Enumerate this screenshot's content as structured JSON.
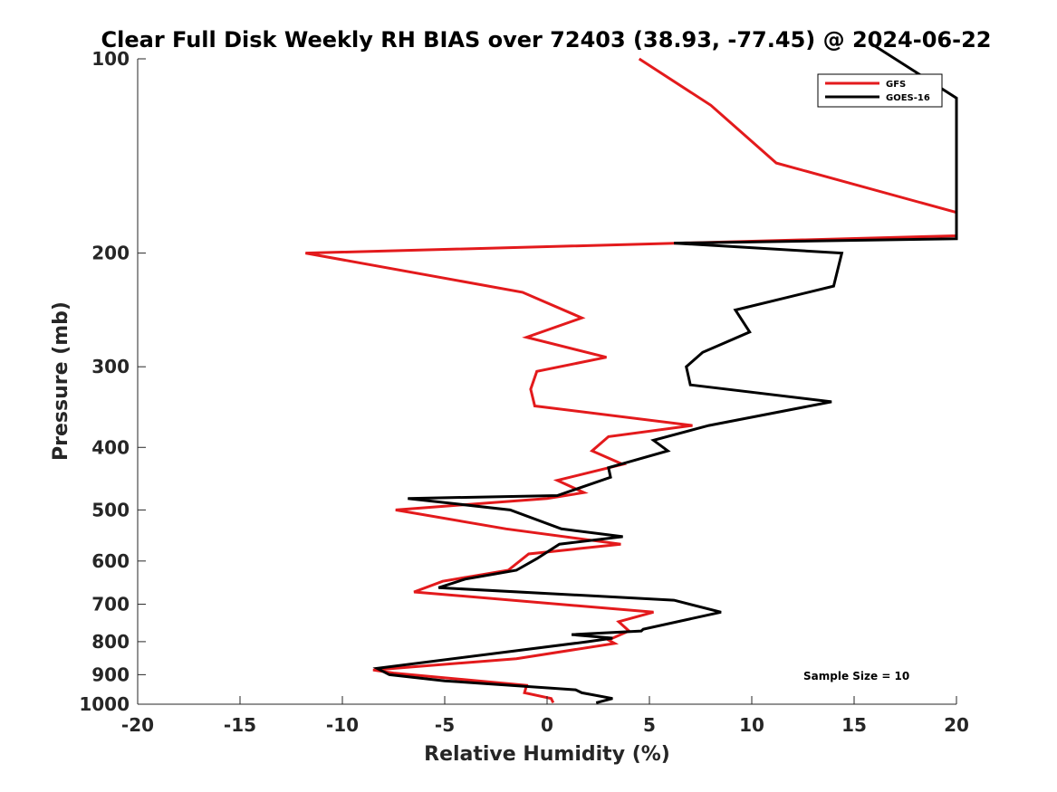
{
  "chart_data": {
    "type": "line",
    "title": "Clear Full Disk Weekly RH BIAS over 72403 (38.93, -77.45) @ 2024-06-22",
    "xlabel": "Relative Humidity (%)",
    "ylabel": "Pressure (mb)",
    "xlim": [
      -20,
      20
    ],
    "ylim": [
      100,
      1000
    ],
    "y_scale": "log",
    "y_reversed": true,
    "x_ticks": [
      "-20",
      "-15",
      "-10",
      "-5",
      "0",
      "5",
      "10",
      "15",
      "20"
    ],
    "y_ticks": [
      "100",
      "200",
      "300",
      "400",
      "500",
      "600",
      "700",
      "800",
      "900",
      "1000"
    ],
    "grid": false,
    "legend_position": "top-right",
    "annotation": "Sample Size = 10",
    "series": [
      {
        "name": "GFS",
        "color": "#e31a1c",
        "x": [
          4.5,
          8,
          11.2,
          20,
          20,
          -11.8,
          -1.2,
          1.7,
          -1,
          2.9,
          -0.5,
          -0.8,
          -0.6,
          7.1,
          3,
          2.2,
          3.7,
          0.5,
          1.8,
          0,
          -7.4,
          -2,
          3.6,
          -0.9,
          -1.9,
          -5.1,
          -6.5,
          5.2,
          3.5,
          4,
          3,
          3.3,
          -1.5,
          -8.5,
          -7.5,
          -1,
          -1.1,
          0.2,
          0.3
        ],
        "y": [
          100,
          118,
          145,
          173,
          188,
          200,
          230,
          252,
          270,
          290,
          305,
          325,
          345,
          370,
          385,
          405,
          425,
          450,
          470,
          480,
          500,
          535,
          565,
          585,
          620,
          645,
          670,
          720,
          745,
          770,
          795,
          805,
          850,
          885,
          895,
          935,
          960,
          980,
          995
        ]
      },
      {
        "name": "GOES-16",
        "color": "#000000",
        "x": [
          15.9,
          20,
          20,
          6.2,
          14.4,
          14,
          9.2,
          9.9,
          7.6,
          6.8,
          7,
          13.9,
          7.9,
          5.2,
          5.9,
          3,
          3.1,
          0.5,
          -6.8,
          -1.8,
          0.7,
          3.7,
          0.6,
          -0.5,
          -1.5,
          -4,
          -5.3,
          6.2,
          8.5,
          4.7,
          4.6,
          1.2,
          3.2,
          2,
          -8.3,
          -7.7,
          -5,
          1.4,
          1.7,
          3.2,
          2.4
        ]
      }
    ]
  }
}
